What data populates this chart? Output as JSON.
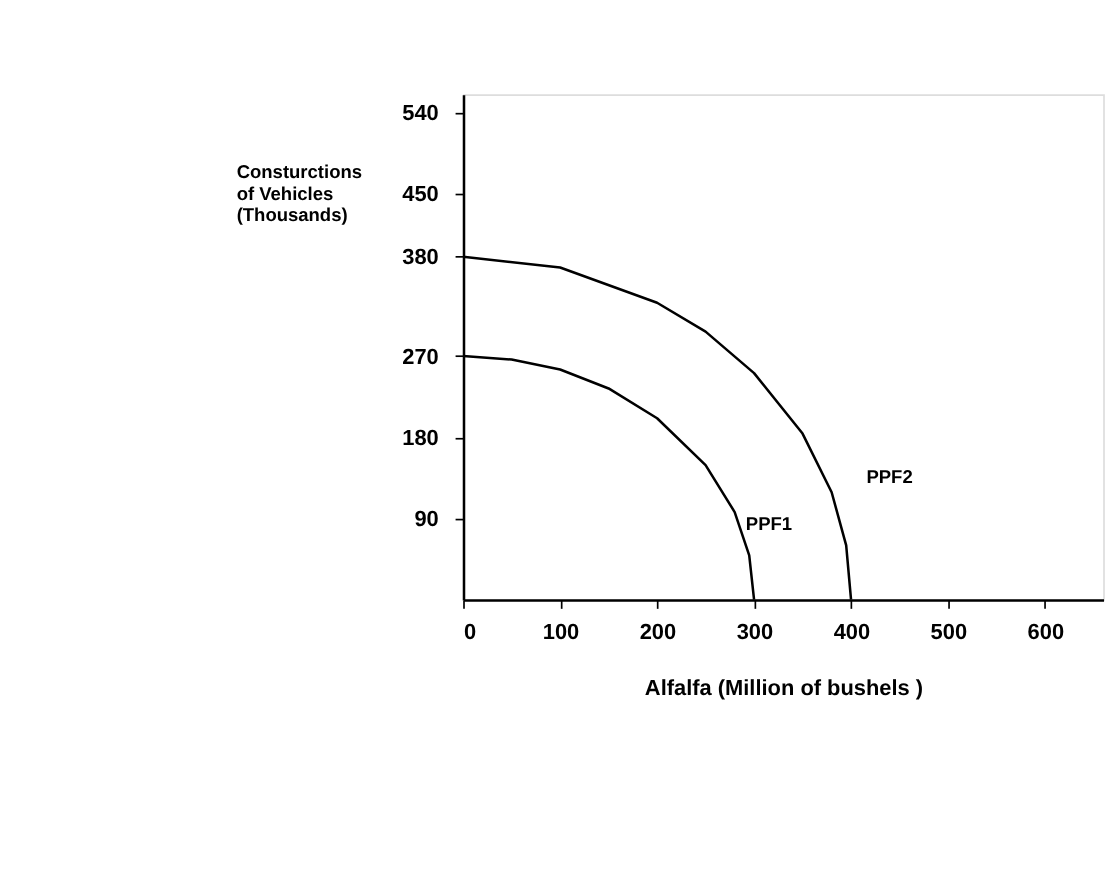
{
  "chart_data": {
    "type": "line",
    "xlabel": "Alfalfa (Million of bushels )",
    "ylabel": "Consturctions of Vehicles (Thousands)",
    "xlim": [
      0,
      660
    ],
    "ylim": [
      0,
      560
    ],
    "xticks": [
      0,
      100,
      200,
      300,
      400,
      500,
      600
    ],
    "yticks": [
      90,
      180,
      270,
      380,
      450,
      540
    ],
    "grid": false,
    "marker": "none",
    "line_style": "solid",
    "series": [
      {
        "name": "PPF1",
        "color": "#000000",
        "x": [
          0,
          50,
          100,
          150,
          200,
          250,
          280,
          295,
          300
        ],
        "values": [
          270,
          266,
          255,
          234,
          201,
          149,
          97,
          49,
          0
        ]
      },
      {
        "name": "PPF2",
        "color": "#000000",
        "x": [
          0,
          100,
          200,
          250,
          300,
          350,
          380,
          395,
          400
        ],
        "values": [
          380,
          368,
          329,
          297,
          251,
          184,
          119,
          60,
          0
        ]
      }
    ]
  }
}
